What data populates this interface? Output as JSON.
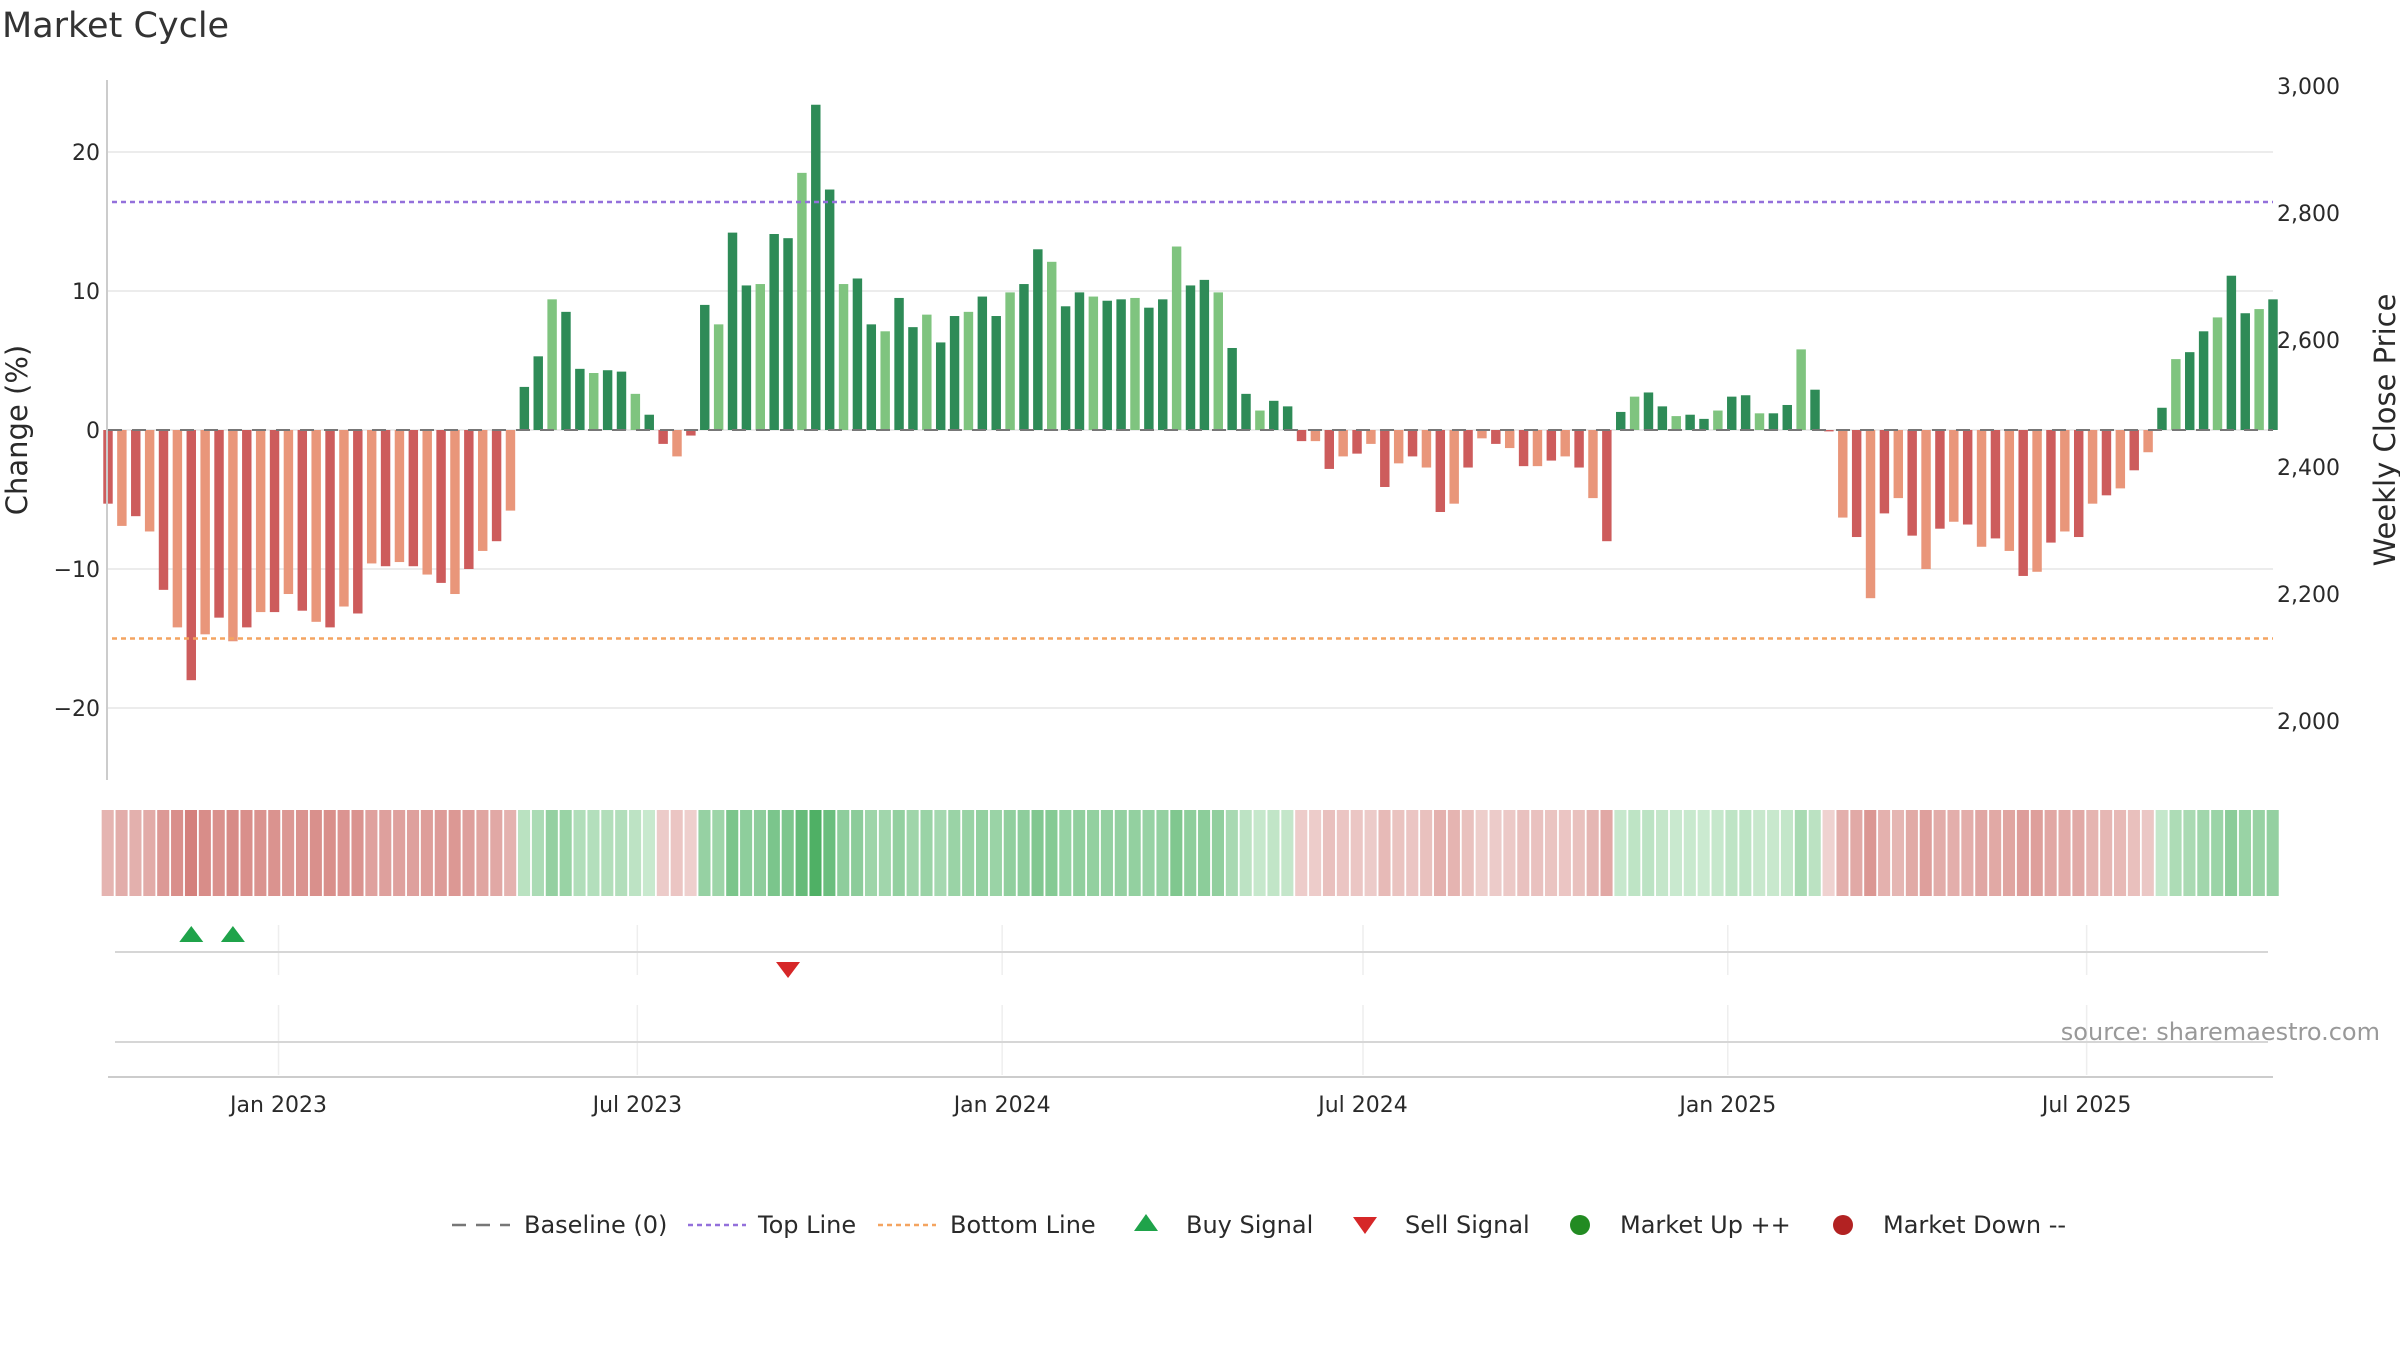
{
  "chart_data": {
    "type": "bar",
    "title": "Market Cycle",
    "ylabel": "Change (%)",
    "y2label": "Weekly Close Price",
    "ylim": [
      -25,
      25
    ],
    "y2lim": [
      1910,
      3000
    ],
    "y_ticks": [
      {
        "value": 20,
        "label": "20"
      },
      {
        "value": 10,
        "label": "10"
      },
      {
        "value": 0,
        "label": "0"
      },
      {
        "value": -10,
        "label": "−10"
      },
      {
        "value": -20,
        "label": "−20"
      }
    ],
    "y2_ticks": [
      {
        "value": 3000,
        "label": "3,000"
      },
      {
        "value": 2800,
        "label": "2,800"
      },
      {
        "value": 2600,
        "label": "2,600"
      },
      {
        "value": 2400,
        "label": "2,400"
      },
      {
        "value": 2200,
        "label": "2,200"
      },
      {
        "value": 2000,
        "label": "2,000"
      }
    ],
    "x_start": "2022-10-07",
    "x_end": "2025-10-03",
    "x_ticks": [
      {
        "date": "2023-01-01",
        "label": "Jan 2023"
      },
      {
        "date": "2023-07-01",
        "label": "Jul 2023"
      },
      {
        "date": "2024-01-01",
        "label": "Jan 2024"
      },
      {
        "date": "2024-07-01",
        "label": "Jul 2024"
      },
      {
        "date": "2025-01-01",
        "label": "Jan 2025"
      },
      {
        "date": "2025-07-01",
        "label": "Jul 2025"
      }
    ],
    "grid": true,
    "top_line": 16.4,
    "bottom_line": -15,
    "baseline": 0,
    "values": [
      -5.3,
      -6.9,
      -6.2,
      -7.3,
      -11.5,
      -14.2,
      -18,
      -14.7,
      -13.5,
      -15.2,
      -14.2,
      -13.1,
      -13.1,
      -11.8,
      -13,
      -13.8,
      -14.2,
      -12.7,
      -13.2,
      -9.6,
      -9.8,
      -9.5,
      -9.8,
      -10.4,
      -11,
      -11.8,
      -10,
      -8.7,
      -8,
      -5.8,
      3.1,
      5.3,
      9.4,
      8.5,
      4.4,
      4.1,
      4.3,
      4.2,
      2.6,
      1.1,
      -1,
      -1.9,
      -0.4,
      9,
      7.6,
      14.2,
      10.4,
      10.5,
      14.1,
      13.8,
      18.5,
      23.4,
      17.3,
      10.5,
      10.9,
      7.6,
      7.1,
      9.5,
      7.4,
      8.3,
      6.3,
      8.2,
      8.5,
      9.6,
      8.2,
      9.9,
      10.5,
      13,
      12.1,
      8.9,
      9.9,
      9.6,
      9.3,
      9.4,
      9.5,
      8.8,
      9.4,
      13.2,
      10.4,
      10.8,
      9.9,
      5.9,
      2.6,
      1.4,
      2.1,
      1.7,
      -0.8,
      -0.8,
      -2.8,
      -1.9,
      -1.7,
      -1,
      -4.1,
      -2.4,
      -1.9,
      -2.7,
      -5.9,
      -5.3,
      -2.7,
      -0.6,
      -1,
      -1.3,
      -2.6,
      -2.6,
      -2.2,
      -1.9,
      -2.7,
      -4.9,
      -8,
      1.3,
      2.4,
      2.7,
      1.7,
      1,
      1.1,
      0.8,
      1.4,
      2.4,
      2.5,
      1.2,
      1.2,
      1.8,
      5.8,
      2.9,
      -0.1,
      -6.3,
      -7.7,
      -12.1,
      -6,
      -4.9,
      -7.6,
      -10,
      -7.1,
      -6.6,
      -6.8,
      -8.4,
      -7.8,
      -8.7,
      -10.5,
      -10.2,
      -8.1,
      -7.3,
      -7.7,
      -5.3,
      -4.7,
      -4.2,
      -2.9,
      -1.6,
      1.6,
      5.1,
      5.6,
      7.1,
      8.1,
      11.1,
      8.4,
      8.7,
      9.4
    ],
    "series": [
      {
        "name": "Baseline (0)"
      },
      {
        "name": "Top Line"
      },
      {
        "name": "Bottom Line"
      },
      {
        "name": "Buy Signal",
        "dates": [
          "2022-11-18",
          "2022-12-09"
        ]
      },
      {
        "name": "Sell Signal",
        "dates": [
          "2023-09-15"
        ]
      },
      {
        "name": "Market Up ++"
      },
      {
        "name": "Market Down --"
      }
    ],
    "legend": "bottom-center",
    "colors": {
      "up_strong": "#2e8b57",
      "up_light": "#7fc47f",
      "down_strong": "#cd5c5c",
      "down_light": "#e9967a",
      "top_line": "#9370db",
      "bottom_line": "#f4a460",
      "buy": "#1fa34a",
      "sell": "#d62728",
      "market_up": "#228b22",
      "market_down": "#b22222",
      "baseline": "#777777"
    }
  },
  "source": "source: sharemaestro.com"
}
